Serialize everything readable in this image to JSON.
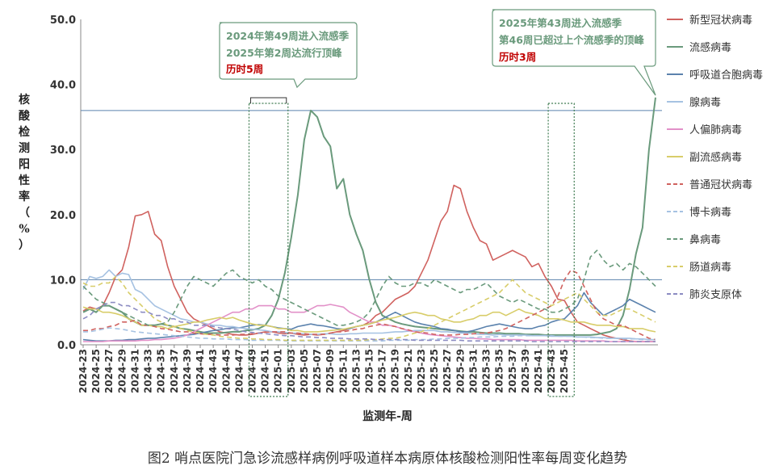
{
  "caption": "图2   哨点医院门急诊流感样病例呼吸道样本病原体核酸检测阳性率每周变化趋势",
  "chart_data": {
    "type": "line",
    "title": "",
    "xlabel": "监测年-周",
    "ylabel": "核酸检测阳性率（%）",
    "ylim": [
      0,
      50
    ],
    "yticks": [
      "0.0",
      "10.0",
      "20.0",
      "30.0",
      "40.0",
      "50.0"
    ],
    "x_tick_labels": [
      "2024-23",
      "2024-25",
      "2024-27",
      "2024-29",
      "2024-31",
      "2024-33",
      "2024-35",
      "2024-37",
      "2024-39",
      "2024-41",
      "2024-43",
      "2024-45",
      "2024-47",
      "2024-49",
      "2024-51",
      "2025-01",
      "2025-03",
      "2025-05",
      "2025-07",
      "2025-09",
      "2025-11",
      "2025-13",
      "2025-15",
      "2025-17",
      "2025-19",
      "2025-21",
      "2025-23",
      "2025-25",
      "2025-27",
      "2025-29",
      "2025-31",
      "2025-33",
      "2025-35",
      "2025-37",
      "2025-39",
      "2025-41",
      "2025-43",
      "2025-45"
    ],
    "reference_lines": [
      10,
      36
    ],
    "annotations": [
      {
        "lines": [
          "2024年第49周进入流感季",
          "2025年第2周达流行顶峰"
        ],
        "highlight": "历时5周"
      },
      {
        "lines": [
          "2025年第43周进入流感季",
          "第46周已超过上个流感季的顶峰"
        ],
        "highlight": "历时3周"
      }
    ],
    "highlight_ranges": [
      [
        "2024-49",
        "2025-02"
      ],
      [
        "2025-43",
        "2025-46"
      ]
    ],
    "series": [
      {
        "name": "新型冠状病毒",
        "color": "#d0625f",
        "dash": false,
        "values": [
          5.2,
          5.8,
          5.5,
          6.0,
          8.0,
          10.5,
          11.5,
          15.0,
          19.8,
          20.0,
          20.5,
          17.0,
          16.0,
          12.0,
          9.0,
          7.0,
          5.0,
          4.0,
          3.5,
          3.0,
          2.5,
          2.0,
          1.8,
          1.6,
          1.5,
          1.5,
          1.6,
          1.8,
          2.0,
          2.0,
          1.8,
          1.7,
          1.8,
          1.6,
          1.5,
          1.6,
          1.5,
          1.6,
          1.8,
          2.0,
          2.2,
          2.5,
          2.8,
          3.0,
          3.5,
          4.5,
          5.0,
          6.0,
          7.0,
          7.5,
          8.0,
          9.0,
          11.0,
          13.0,
          16.0,
          19.0,
          20.5,
          24.5,
          24.0,
          20.5,
          18.0,
          16.0,
          15.5,
          13.0,
          13.5,
          14.0,
          14.5,
          14.0,
          13.5,
          12.0,
          12.5,
          10.5,
          9.0,
          7.0,
          6.8,
          5.0,
          3.5,
          3.0,
          2.5,
          2.0,
          1.5,
          1.2,
          1.0,
          0.8,
          0.6,
          0.5,
          0.5,
          0.5,
          0.5
        ]
      },
      {
        "name": "流感病毒",
        "color": "#6a9a7c",
        "dash": false,
        "values": [
          5.0,
          5.5,
          5.0,
          6.0,
          6.0,
          5.5,
          5.0,
          4.0,
          3.5,
          3.0,
          3.0,
          3.0,
          3.2,
          3.0,
          2.8,
          2.5,
          2.4,
          2.2,
          2.0,
          1.8,
          1.8,
          1.8,
          1.9,
          2.0,
          2.0,
          2.2,
          2.3,
          2.5,
          3.0,
          4.5,
          7.0,
          11.0,
          16.5,
          23.0,
          31.5,
          36.0,
          35.0,
          32.0,
          30.5,
          24.0,
          25.5,
          20.0,
          17.0,
          14.5,
          10.0,
          6.5,
          4.5,
          4.0,
          3.5,
          3.2,
          3.0,
          2.8,
          2.7,
          2.6,
          2.5,
          2.4,
          2.3,
          2.2,
          2.1,
          2.0,
          2.0,
          1.9,
          1.8,
          1.8,
          1.8,
          1.7,
          1.7,
          1.7,
          1.6,
          1.6,
          1.6,
          1.5,
          1.5,
          1.5,
          1.5,
          1.5,
          1.5,
          1.5,
          1.5,
          1.6,
          1.8,
          2.0,
          2.5,
          4.5,
          8.5,
          14.0,
          18.0,
          30.0,
          38.0
        ]
      },
      {
        "name": "呼吸道合胞病毒",
        "color": "#5b82ad",
        "dash": false,
        "values": [
          0.8,
          0.7,
          0.6,
          0.6,
          0.6,
          0.7,
          0.7,
          0.8,
          0.8,
          0.9,
          1.0,
          1.0,
          1.1,
          1.2,
          1.3,
          1.4,
          1.5,
          1.6,
          1.8,
          2.0,
          2.2,
          2.3,
          2.5,
          2.6,
          2.6,
          2.8,
          3.0,
          3.1,
          3.0,
          2.8,
          2.6,
          2.5,
          2.4,
          2.8,
          3.0,
          3.2,
          3.0,
          2.9,
          2.7,
          2.5,
          2.4,
          2.5,
          2.8,
          3.0,
          3.2,
          3.5,
          4.0,
          4.5,
          5.0,
          4.5,
          4.0,
          3.5,
          3.2,
          3.0,
          2.8,
          2.5,
          2.4,
          2.2,
          2.0,
          2.0,
          2.2,
          2.5,
          2.8,
          3.0,
          3.2,
          3.0,
          2.8,
          2.6,
          2.5,
          2.5,
          2.8,
          3.0,
          3.5,
          3.8,
          4.0,
          5.0,
          6.0,
          8.0,
          6.5,
          5.5,
          4.5,
          5.0,
          5.5,
          6.0,
          7.0,
          6.5,
          6.0,
          5.5,
          5.0
        ]
      },
      {
        "name": "腺病毒",
        "color": "#a6c2e2",
        "dash": false,
        "values": [
          8.5,
          10.5,
          10.2,
          10.5,
          11.5,
          10.5,
          11.0,
          10.8,
          8.5,
          8.0,
          7.0,
          6.0,
          5.5,
          5.0,
          4.5,
          4.0,
          3.8,
          3.5,
          3.5,
          3.2,
          3.0,
          3.0,
          2.8,
          2.8,
          2.6,
          2.5,
          2.4,
          2.3,
          2.2,
          2.0,
          2.0,
          1.9,
          1.8,
          1.8,
          1.7,
          1.6,
          1.6,
          1.7,
          1.7,
          1.6,
          1.6,
          1.7,
          1.7,
          1.8,
          1.8,
          1.8,
          1.8,
          1.9,
          2.0,
          2.0,
          2.1,
          2.2,
          2.2,
          2.2,
          2.2,
          2.0,
          2.0,
          1.9,
          1.8,
          1.8,
          1.7,
          1.6,
          1.6,
          1.5,
          1.6,
          1.5,
          1.5,
          1.5,
          1.5,
          1.4,
          1.4,
          1.4,
          1.3,
          1.3,
          1.3,
          1.3,
          1.2,
          1.2,
          1.2,
          1.1,
          1.1,
          1.0,
          1.0,
          1.0,
          1.0,
          0.9,
          0.9,
          0.8,
          0.8
        ]
      },
      {
        "name": "人偏肺病毒",
        "color": "#e290c8",
        "dash": false,
        "values": [
          0.5,
          0.5,
          0.5,
          0.5,
          0.6,
          0.6,
          0.6,
          0.6,
          0.6,
          0.7,
          0.7,
          0.8,
          0.8,
          0.9,
          1.0,
          1.2,
          1.5,
          2.0,
          2.5,
          3.0,
          3.5,
          4.0,
          4.5,
          5.0,
          5.0,
          5.5,
          5.5,
          6.0,
          6.0,
          6.0,
          5.5,
          5.5,
          5.0,
          5.0,
          5.0,
          5.5,
          6.0,
          6.0,
          6.2,
          6.0,
          5.8,
          5.0,
          4.5,
          4.0,
          3.5,
          3.5,
          3.0,
          3.0,
          2.8,
          2.5,
          2.2,
          2.0,
          1.8,
          1.6,
          1.5,
          1.4,
          1.3,
          1.2,
          1.1,
          1.0,
          1.0,
          0.9,
          0.9,
          0.8,
          0.8,
          0.8,
          0.8,
          0.8,
          0.7,
          0.7,
          0.7,
          0.7,
          0.7,
          0.7,
          0.7,
          0.7,
          0.6,
          0.6,
          0.6,
          0.6,
          0.6,
          0.5,
          0.5,
          0.5,
          0.5,
          0.5,
          0.5,
          0.5,
          0.5
        ]
      },
      {
        "name": "副流感病毒",
        "color": "#d8cd6a",
        "dash": false,
        "values": [
          5.8,
          5.5,
          5.5,
          5.0,
          5.0,
          4.8,
          4.5,
          4.0,
          3.5,
          3.0,
          3.0,
          2.8,
          2.8,
          2.5,
          2.8,
          3.0,
          3.2,
          3.5,
          3.5,
          3.8,
          4.0,
          4.2,
          4.0,
          4.2,
          3.8,
          3.5,
          3.2,
          3.0,
          3.0,
          2.8,
          2.5,
          2.5,
          2.2,
          2.2,
          2.0,
          2.0,
          2.0,
          2.1,
          2.2,
          2.3,
          2.4,
          2.6,
          2.8,
          3.0,
          3.2,
          3.5,
          3.8,
          4.0,
          4.2,
          4.5,
          4.8,
          5.0,
          4.8,
          4.5,
          4.5,
          4.0,
          3.8,
          3.5,
          3.5,
          3.8,
          4.0,
          4.5,
          4.5,
          5.0,
          5.0,
          4.5,
          5.0,
          5.5,
          5.0,
          4.8,
          4.5,
          4.0,
          4.0,
          4.0,
          3.8,
          3.5,
          3.5,
          3.5,
          3.2,
          3.0,
          3.0,
          3.0,
          2.8,
          2.8,
          2.5,
          2.5,
          2.5,
          2.2,
          2.0
        ]
      },
      {
        "name": "普通冠状病毒",
        "color": "#d0625f",
        "dash": true,
        "values": [
          2.2,
          2.2,
          2.5,
          2.5,
          2.8,
          3.0,
          3.5,
          3.5,
          3.8,
          3.0,
          3.0,
          2.8,
          2.5,
          2.4,
          2.2,
          2.0,
          2.0,
          1.8,
          1.7,
          1.6,
          1.6,
          1.5,
          1.5,
          1.5,
          1.6,
          1.6,
          1.7,
          1.8,
          1.9,
          2.0,
          2.0,
          2.0,
          1.8,
          1.8,
          1.7,
          1.6,
          1.6,
          1.6,
          1.8,
          2.0,
          2.0,
          2.2,
          2.4,
          2.5,
          2.8,
          3.0,
          3.2,
          3.0,
          2.8,
          2.5,
          2.3,
          2.0,
          1.9,
          1.8,
          1.6,
          1.5,
          1.5,
          1.5,
          1.6,
          1.6,
          1.7,
          1.8,
          1.8,
          2.0,
          2.2,
          2.5,
          3.0,
          3.5,
          4.0,
          4.5,
          5.0,
          5.5,
          6.0,
          7.5,
          10.0,
          11.5,
          11.0,
          9.0,
          7.0,
          5.0,
          4.0,
          3.5,
          3.0,
          3.0,
          2.5,
          2.0,
          1.5,
          1.0,
          0.8
        ]
      },
      {
        "name": "博卡病毒",
        "color": "#a6c2e2",
        "dash": true,
        "values": [
          2.0,
          2.0,
          2.2,
          2.4,
          2.6,
          2.5,
          2.4,
          2.2,
          2.0,
          1.9,
          1.8,
          1.7,
          1.6,
          1.5,
          1.4,
          1.3,
          1.2,
          1.1,
          1.0,
          1.0,
          0.9,
          0.9,
          0.9,
          0.8,
          0.8,
          0.8,
          0.7,
          0.7,
          0.7,
          0.7,
          0.7,
          0.6,
          0.6,
          0.6,
          0.6,
          0.6,
          0.6,
          0.6,
          0.6,
          0.6,
          0.6,
          0.6,
          0.6,
          0.6,
          0.6,
          0.6,
          0.6,
          0.7,
          0.7,
          0.7,
          0.7,
          0.8,
          0.8,
          0.8,
          0.9,
          0.9,
          1.0,
          1.0,
          1.0,
          1.1,
          1.1,
          1.2,
          1.2,
          1.2,
          1.3,
          1.3,
          1.3,
          1.4,
          1.4,
          1.4,
          1.4,
          1.4,
          1.4,
          1.3,
          1.3,
          1.3,
          1.2,
          1.2,
          1.1,
          1.1,
          1.0,
          1.0,
          1.0,
          0.9,
          0.9,
          0.9,
          0.8,
          0.8,
          0.8
        ]
      },
      {
        "name": "鼻病毒",
        "color": "#6a9a7c",
        "dash": true,
        "values": [
          9.0,
          8.0,
          7.0,
          6.5,
          6.0,
          5.5,
          5.0,
          4.5,
          4.0,
          3.5,
          3.0,
          3.0,
          3.2,
          3.5,
          5.0,
          7.0,
          9.0,
          10.5,
          10.0,
          9.5,
          9.0,
          10.0,
          11.0,
          11.5,
          10.5,
          10.0,
          9.5,
          10.0,
          9.0,
          8.5,
          7.5,
          7.0,
          6.5,
          6.0,
          5.5,
          5.0,
          4.5,
          4.0,
          3.5,
          3.0,
          3.0,
          3.2,
          3.5,
          4.0,
          5.0,
          7.0,
          9.0,
          10.5,
          9.5,
          9.0,
          9.0,
          9.5,
          9.5,
          9.0,
          10.0,
          9.5,
          9.0,
          8.5,
          8.0,
          8.5,
          8.5,
          9.0,
          9.5,
          8.5,
          7.5,
          7.0,
          6.5,
          7.0,
          6.5,
          6.0,
          5.5,
          5.5,
          5.0,
          5.0,
          5.5,
          6.0,
          7.0,
          10.0,
          13.5,
          14.5,
          13.0,
          12.0,
          12.5,
          11.5,
          12.5,
          12.0,
          11.0,
          10.0,
          9.0
        ]
      },
      {
        "name": "肠道病毒",
        "color": "#d8cd6a",
        "dash": true,
        "values": [
          9.5,
          9.0,
          9.0,
          9.5,
          9.5,
          10.5,
          9.5,
          8.0,
          7.0,
          6.0,
          5.0,
          4.0,
          3.5,
          3.0,
          2.8,
          2.5,
          2.2,
          2.0,
          1.8,
          1.6,
          1.5,
          1.3,
          1.2,
          1.1,
          1.0,
          1.0,
          0.9,
          0.9,
          0.8,
          0.8,
          0.8,
          0.7,
          0.7,
          0.7,
          0.7,
          0.7,
          0.7,
          0.7,
          0.7,
          0.7,
          0.7,
          0.7,
          0.7,
          0.7,
          0.8,
          0.8,
          0.9,
          1.0,
          1.0,
          1.2,
          1.5,
          1.8,
          2.0,
          2.5,
          3.0,
          3.5,
          4.0,
          4.5,
          5.0,
          5.5,
          6.0,
          6.5,
          7.0,
          7.5,
          8.0,
          9.0,
          10.0,
          9.0,
          8.0,
          7.5,
          7.0,
          6.5,
          6.0,
          6.5,
          7.0,
          7.5,
          8.0,
          7.0,
          6.0,
          5.0,
          4.5,
          4.5,
          5.0,
          5.5,
          5.5,
          5.0,
          4.5,
          4.0,
          3.5
        ]
      },
      {
        "name": "肺炎支原体",
        "color": "#8c8cc2",
        "dash": true,
        "values": [
          4.0,
          4.5,
          5.5,
          6.0,
          6.5,
          6.5,
          6.0,
          6.0,
          5.5,
          5.0,
          5.0,
          4.5,
          4.5,
          4.0,
          4.0,
          3.5,
          3.5,
          3.0,
          3.0,
          3.0,
          2.8,
          2.6,
          2.5,
          2.4,
          2.2,
          2.0,
          1.9,
          1.8,
          1.7,
          1.6,
          1.5,
          1.4,
          1.4,
          1.3,
          1.2,
          1.2,
          1.1,
          1.1,
          1.0,
          1.0,
          1.0,
          0.9,
          0.9,
          0.9,
          0.9,
          0.8,
          0.8,
          0.8,
          0.8,
          0.8,
          0.8,
          0.7,
          0.7,
          0.7,
          0.7,
          0.7,
          0.7,
          0.7,
          0.7,
          0.6,
          0.6,
          0.6,
          0.6,
          0.6,
          0.6,
          0.6,
          0.6,
          0.6,
          0.6,
          0.5,
          0.5,
          0.5,
          0.5,
          0.5,
          0.5,
          0.5,
          0.5,
          0.5,
          0.5,
          0.5,
          0.5,
          0.5,
          0.5,
          0.5,
          0.5,
          0.5,
          0.5,
          0.5,
          0.5
        ]
      }
    ]
  }
}
